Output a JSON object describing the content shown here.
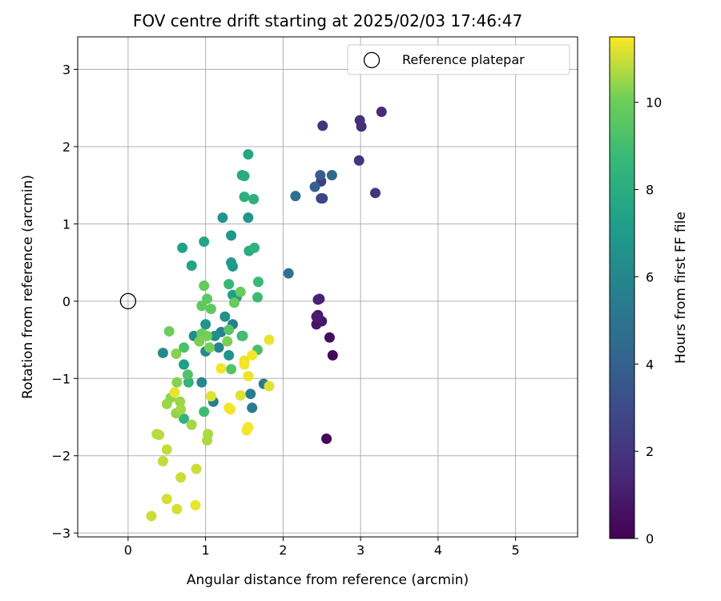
{
  "chart_data": {
    "type": "scatter",
    "title": "FOV centre drift starting at 2025/02/03 17:46:47",
    "xlabel": "Angular distance from reference (arcmin)",
    "ylabel": "Rotation from reference (arcmin)",
    "xlim": [
      -0.65,
      5.8
    ],
    "ylim": [
      -3.05,
      3.42
    ],
    "xticks": [
      0,
      1,
      2,
      3,
      4,
      5
    ],
    "yticks": [
      -3,
      -2,
      -1,
      0,
      1,
      2,
      3
    ],
    "grid": true,
    "legend": {
      "position": "top-right",
      "entries": [
        "Reference platepar"
      ]
    },
    "reference_point": {
      "x": 0,
      "y": 0
    },
    "colorbar": {
      "label": "Hours from first FF file",
      "colormap": "viridis",
      "range": [
        0,
        11.5
      ],
      "ticks": [
        0,
        2,
        4,
        6,
        8,
        10
      ]
    },
    "points": [
      {
        "x": 2.56,
        "y": -1.78,
        "c": 0.2
      },
      {
        "x": 2.64,
        "y": -0.7,
        "c": 0.3
      },
      {
        "x": 2.6,
        "y": -0.47,
        "c": 0.4
      },
      {
        "x": 2.43,
        "y": -0.3,
        "c": 0.7
      },
      {
        "x": 2.5,
        "y": -0.26,
        "c": 0.8
      },
      {
        "x": 2.45,
        "y": -0.18,
        "c": 0.9
      },
      {
        "x": 2.43,
        "y": -0.2,
        "c": 1.0
      },
      {
        "x": 2.45,
        "y": 0.02,
        "c": 1.1
      },
      {
        "x": 2.47,
        "y": 0.03,
        "c": 1.2
      },
      {
        "x": 3.27,
        "y": 2.45,
        "c": 1.6
      },
      {
        "x": 3.01,
        "y": 2.26,
        "c": 1.7
      },
      {
        "x": 2.99,
        "y": 2.34,
        "c": 1.8
      },
      {
        "x": 2.51,
        "y": 2.27,
        "c": 1.9
      },
      {
        "x": 2.98,
        "y": 1.82,
        "c": 2.0
      },
      {
        "x": 3.19,
        "y": 1.4,
        "c": 2.1
      },
      {
        "x": 2.49,
        "y": 1.55,
        "c": 2.4
      },
      {
        "x": 2.49,
        "y": 1.33,
        "c": 2.6
      },
      {
        "x": 2.51,
        "y": 1.33,
        "c": 2.7
      },
      {
        "x": 2.48,
        "y": 1.63,
        "c": 3.8
      },
      {
        "x": 2.63,
        "y": 1.63,
        "c": 4.3
      },
      {
        "x": 2.41,
        "y": 1.48,
        "c": 4.0
      },
      {
        "x": 2.16,
        "y": 1.36,
        "c": 4.7
      },
      {
        "x": 2.07,
        "y": 0.36,
        "c": 5.0
      },
      {
        "x": 1.75,
        "y": -1.07,
        "c": 5.3
      },
      {
        "x": 1.6,
        "y": -1.38,
        "c": 5.4
      },
      {
        "x": 1.58,
        "y": -1.2,
        "c": 5.5
      },
      {
        "x": 1.35,
        "y": -0.3,
        "c": 5.6
      },
      {
        "x": 1.1,
        "y": -1.3,
        "c": 5.7
      },
      {
        "x": 1.2,
        "y": -0.4,
        "c": 5.8
      },
      {
        "x": 1.17,
        "y": -0.6,
        "c": 5.9
      },
      {
        "x": 1.0,
        "y": -0.65,
        "c": 6.0
      },
      {
        "x": 0.95,
        "y": -1.05,
        "c": 6.1
      },
      {
        "x": 0.45,
        "y": -0.67,
        "c": 6.2
      },
      {
        "x": 0.85,
        "y": -0.45,
        "c": 6.3
      },
      {
        "x": 1.12,
        "y": -0.45,
        "c": 6.4
      },
      {
        "x": 1.25,
        "y": -0.2,
        "c": 6.5
      },
      {
        "x": 1.0,
        "y": -0.3,
        "c": 6.6
      },
      {
        "x": 1.3,
        "y": -0.7,
        "c": 6.6
      },
      {
        "x": 1.22,
        "y": 1.08,
        "c": 6.7
      },
      {
        "x": 1.55,
        "y": 1.08,
        "c": 6.8
      },
      {
        "x": 1.33,
        "y": 0.85,
        "c": 6.9
      },
      {
        "x": 1.33,
        "y": 0.5,
        "c": 7.0
      },
      {
        "x": 1.35,
        "y": 0.45,
        "c": 7.0
      },
      {
        "x": 1.4,
        "y": 0.05,
        "c": 7.1
      },
      {
        "x": 1.47,
        "y": -0.45,
        "c": 7.2
      },
      {
        "x": 0.72,
        "y": -0.82,
        "c": 7.2
      },
      {
        "x": 1.35,
        "y": 0.08,
        "c": 7.3
      },
      {
        "x": 0.7,
        "y": 0.69,
        "c": 7.4
      },
      {
        "x": 0.82,
        "y": 0.46,
        "c": 7.5
      },
      {
        "x": 0.98,
        "y": 0.77,
        "c": 7.6
      },
      {
        "x": 1.55,
        "y": 1.9,
        "c": 7.7
      },
      {
        "x": 1.47,
        "y": 1.63,
        "c": 7.8
      },
      {
        "x": 1.5,
        "y": 1.62,
        "c": 7.9
      },
      {
        "x": 1.56,
        "y": 0.65,
        "c": 8.0
      },
      {
        "x": 1.5,
        "y": 1.35,
        "c": 8.1
      },
      {
        "x": 1.62,
        "y": 1.32,
        "c": 8.2
      },
      {
        "x": 1.63,
        "y": 0.69,
        "c": 8.4
      },
      {
        "x": 0.72,
        "y": -1.52,
        "c": 8.4
      },
      {
        "x": 0.78,
        "y": -1.05,
        "c": 8.5
      },
      {
        "x": 1.3,
        "y": 0.22,
        "c": 8.6
      },
      {
        "x": 1.68,
        "y": 0.25,
        "c": 8.7
      },
      {
        "x": 1.67,
        "y": 0.05,
        "c": 8.8
      },
      {
        "x": 0.98,
        "y": -1.43,
        "c": 8.9
      },
      {
        "x": 1.48,
        "y": -0.45,
        "c": 9.0
      },
      {
        "x": 1.67,
        "y": -0.63,
        "c": 9.1
      },
      {
        "x": 0.72,
        "y": -0.6,
        "c": 9.2
      },
      {
        "x": 0.77,
        "y": -0.95,
        "c": 9.3
      },
      {
        "x": 1.33,
        "y": -0.88,
        "c": 9.4
      },
      {
        "x": 1.3,
        "y": -0.37,
        "c": 9.5
      },
      {
        "x": 1.02,
        "y": 0.03,
        "c": 9.6
      },
      {
        "x": 0.95,
        "y": -0.06,
        "c": 9.7
      },
      {
        "x": 1.07,
        "y": -0.1,
        "c": 9.7
      },
      {
        "x": 0.98,
        "y": 0.2,
        "c": 9.8
      },
      {
        "x": 1.45,
        "y": 0.12,
        "c": 9.9
      },
      {
        "x": 1.37,
        "y": -0.02,
        "c": 9.9
      },
      {
        "x": 0.53,
        "y": -0.39,
        "c": 10.0
      },
      {
        "x": 0.95,
        "y": -0.42,
        "c": 10.0
      },
      {
        "x": 1.02,
        "y": -0.45,
        "c": 10.1
      },
      {
        "x": 1.05,
        "y": -0.6,
        "c": 10.1
      },
      {
        "x": 1.28,
        "y": -0.52,
        "c": 10.2
      },
      {
        "x": 0.92,
        "y": -0.52,
        "c": 10.2
      },
      {
        "x": 0.62,
        "y": -0.68,
        "c": 10.3
      },
      {
        "x": 0.63,
        "y": -1.05,
        "c": 10.3
      },
      {
        "x": 0.55,
        "y": -1.25,
        "c": 10.4
      },
      {
        "x": 0.62,
        "y": -1.45,
        "c": 10.4
      },
      {
        "x": 0.67,
        "y": -1.3,
        "c": 10.5
      },
      {
        "x": 0.5,
        "y": -1.33,
        "c": 10.5
      },
      {
        "x": 0.68,
        "y": -1.4,
        "c": 10.6
      },
      {
        "x": 0.82,
        "y": -1.6,
        "c": 10.6
      },
      {
        "x": 1.03,
        "y": -1.72,
        "c": 10.7
      },
      {
        "x": 1.02,
        "y": -1.8,
        "c": 10.7
      },
      {
        "x": 0.37,
        "y": -1.72,
        "c": 10.8
      },
      {
        "x": 0.4,
        "y": -1.73,
        "c": 10.8
      },
      {
        "x": 0.5,
        "y": -1.92,
        "c": 10.9
      },
      {
        "x": 0.45,
        "y": -2.07,
        "c": 10.9
      },
      {
        "x": 0.68,
        "y": -2.28,
        "c": 11.0
      },
      {
        "x": 0.88,
        "y": -2.17,
        "c": 11.0
      },
      {
        "x": 0.5,
        "y": -2.56,
        "c": 11.1
      },
      {
        "x": 0.63,
        "y": -2.69,
        "c": 11.1
      },
      {
        "x": 0.3,
        "y": -2.78,
        "c": 11.0
      },
      {
        "x": 0.87,
        "y": -2.64,
        "c": 11.3
      },
      {
        "x": 1.07,
        "y": -1.23,
        "c": 11.2
      },
      {
        "x": 1.45,
        "y": -1.22,
        "c": 11.2
      },
      {
        "x": 1.82,
        "y": -1.1,
        "c": 11.2
      },
      {
        "x": 1.82,
        "y": -0.5,
        "c": 11.3
      },
      {
        "x": 1.55,
        "y": -0.97,
        "c": 11.3
      },
      {
        "x": 1.2,
        "y": -0.87,
        "c": 11.4
      },
      {
        "x": 1.55,
        "y": -1.63,
        "c": 11.4
      },
      {
        "x": 1.53,
        "y": -1.67,
        "c": 11.4
      },
      {
        "x": 1.32,
        "y": -1.4,
        "c": 11.4
      },
      {
        "x": 1.3,
        "y": -1.38,
        "c": 11.4
      },
      {
        "x": 1.5,
        "y": -0.77,
        "c": 11.3
      },
      {
        "x": 1.6,
        "y": -0.7,
        "c": 11.4
      },
      {
        "x": 1.5,
        "y": -0.82,
        "c": 11.4
      },
      {
        "x": 0.6,
        "y": -1.18,
        "c": 11.3
      }
    ]
  }
}
